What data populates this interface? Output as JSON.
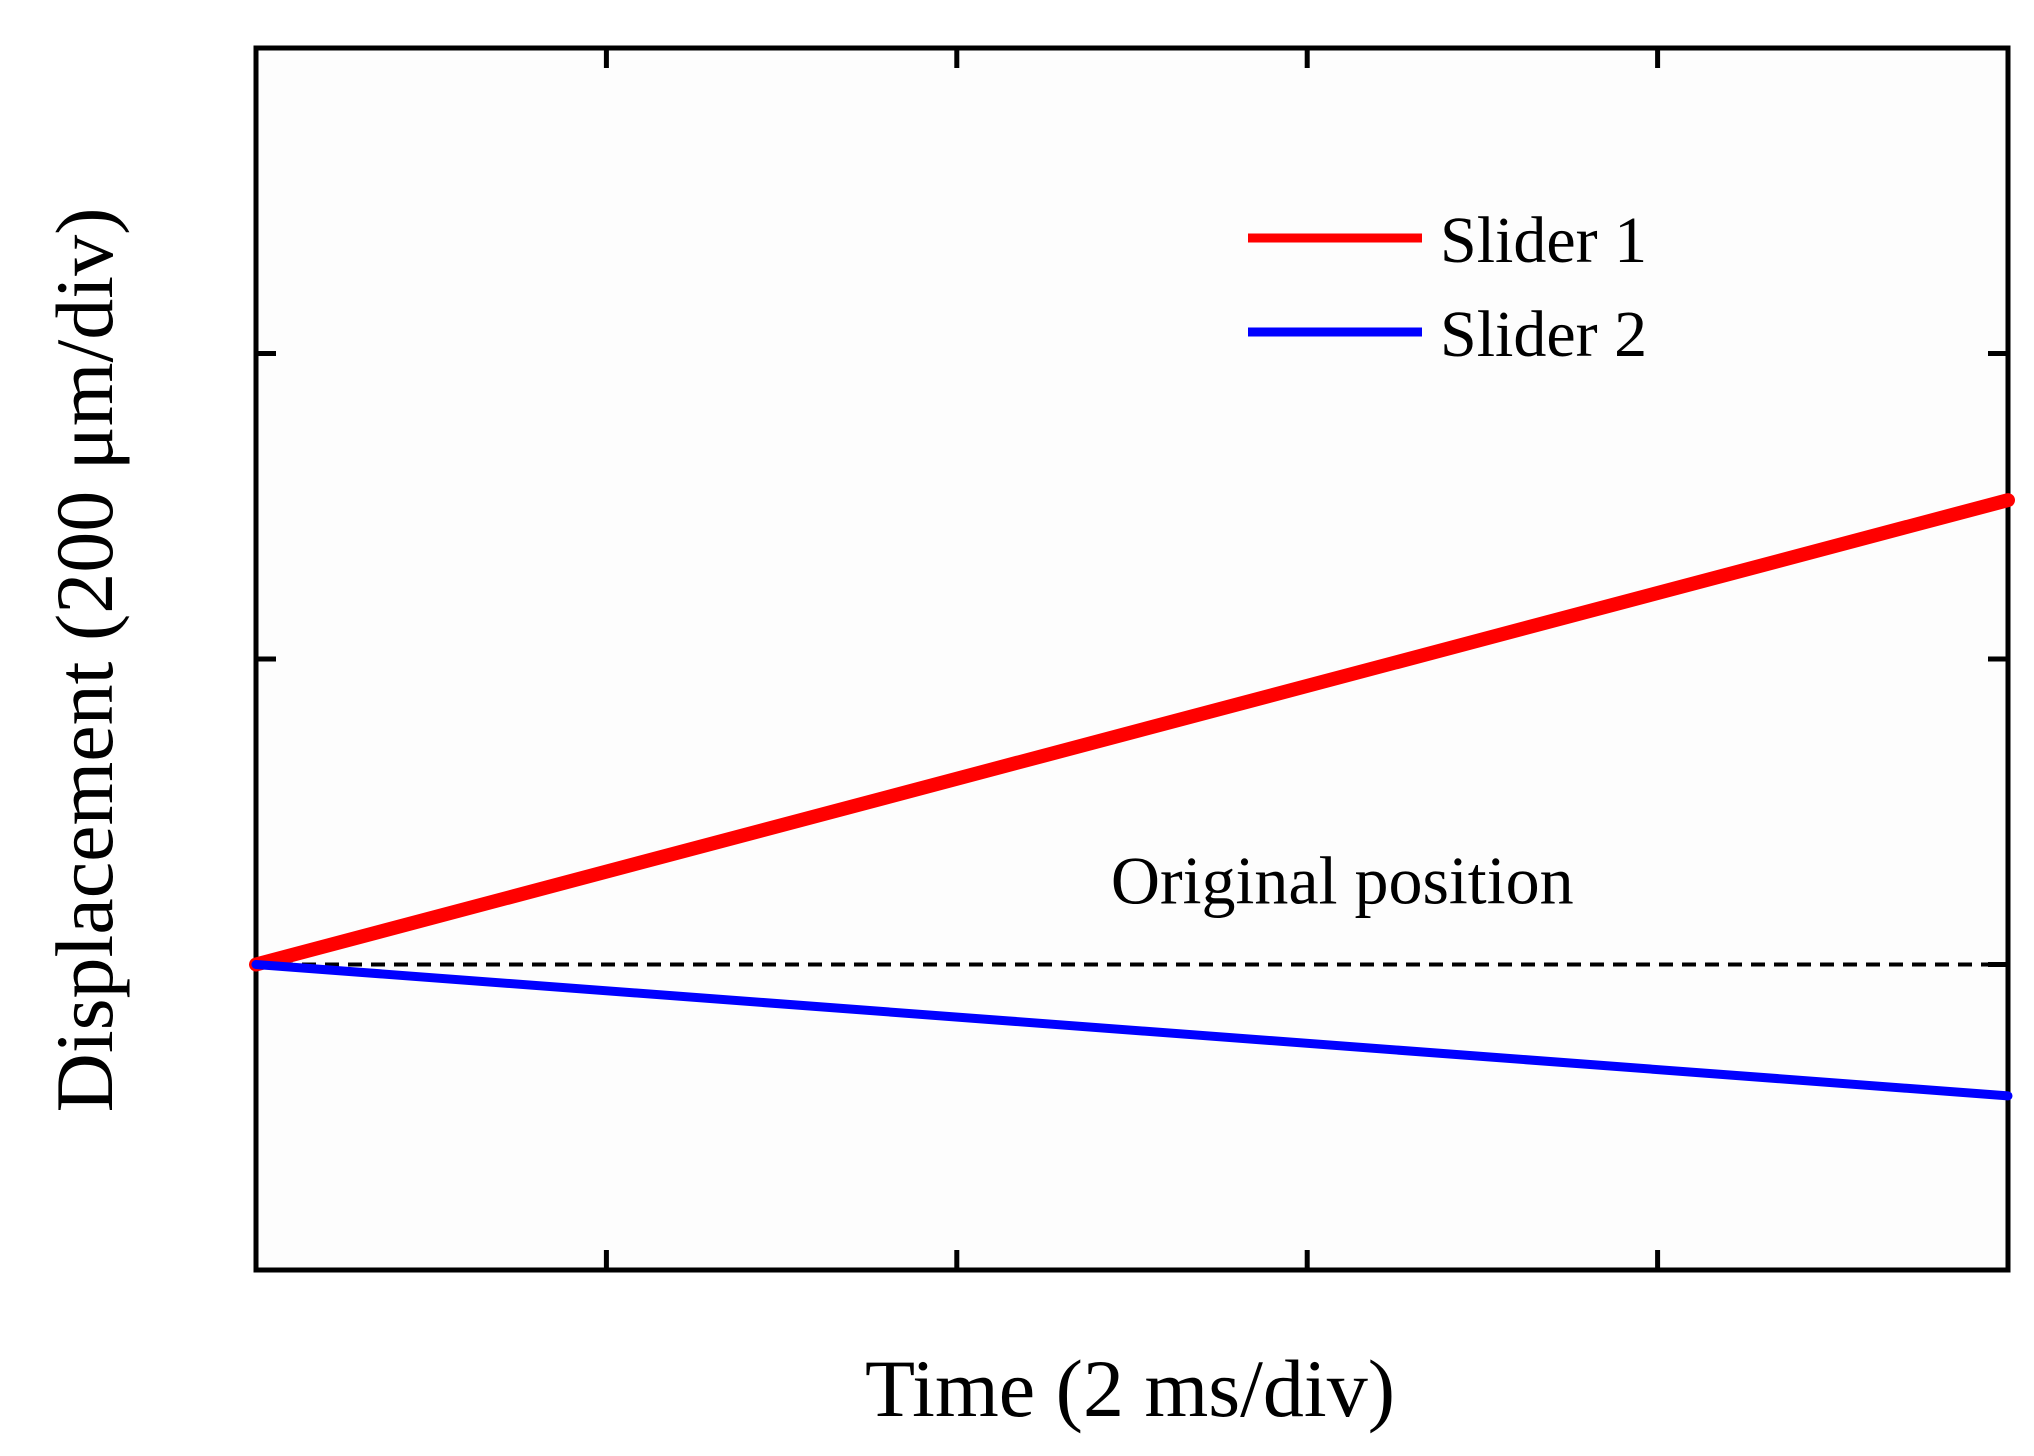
{
  "chart_data": {
    "type": "line",
    "title": "",
    "xlabel": "Time (2 ms/div)",
    "ylabel": "Displacement (200 μm/div)",
    "x_divisions": 5,
    "y_divisions": 4,
    "xlim": [
      0,
      5
    ],
    "ylim": [
      -1,
      3
    ],
    "x_tick_labels_shown": false,
    "y_tick_labels_shown": false,
    "grid": false,
    "legend": {
      "position": "top-right",
      "entries": [
        "Slider 1",
        "Slider 2"
      ]
    },
    "series": [
      {
        "name": "Slider 1",
        "color": "#ff0000",
        "x": [
          0,
          5
        ],
        "y": [
          0,
          1.52
        ]
      },
      {
        "name": "Slider 2",
        "color": "#0000ff",
        "x": [
          0,
          5
        ],
        "y": [
          0,
          -0.43
        ]
      }
    ],
    "reference_lines": [
      {
        "label": "Original position",
        "y": 0,
        "style": "dashed",
        "color": "#000000"
      }
    ],
    "annotations": [
      {
        "text": "Original position",
        "x": 3.1,
        "y": 0.2
      }
    ]
  }
}
